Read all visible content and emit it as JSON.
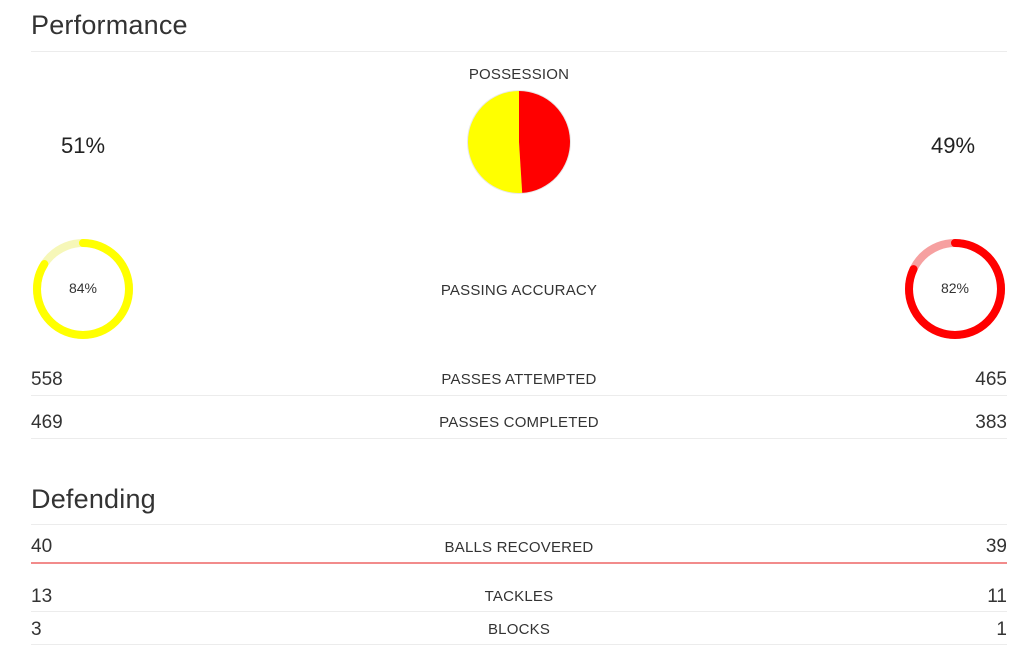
{
  "performance": {
    "title": "Performance",
    "possession": {
      "label": "POSSESSION",
      "left_text": "51%",
      "right_text": "49%",
      "left_value": 51,
      "right_value": 49
    },
    "passing_accuracy": {
      "label": "PASSING ACCURACY",
      "left_text": "84%",
      "right_text": "82%",
      "left_value": 84,
      "right_value": 82
    },
    "rows": [
      {
        "label": "PASSES ATTEMPTED",
        "left": "558",
        "right": "465"
      },
      {
        "label": "PASSES COMPLETED",
        "left": "469",
        "right": "383"
      }
    ]
  },
  "defending": {
    "title": "Defending",
    "rows": [
      {
        "label": "BALLS RECOVERED",
        "left": "40",
        "right": "39"
      },
      {
        "label": "TACKLES",
        "left": "13",
        "right": "11"
      },
      {
        "label": "BLOCKS",
        "left": "3",
        "right": "1"
      }
    ]
  },
  "colors": {
    "team_left": "#ffff00",
    "team_left_light": "#f6f7b8",
    "team_right": "#ff0000",
    "team_right_light": "#f6a0a0",
    "accent_line": "#f28b8b"
  }
}
